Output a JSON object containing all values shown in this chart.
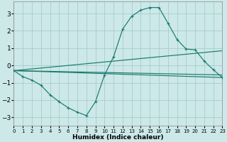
{
  "xlabel": "Humidex (Indice chaleur)",
  "bg_color": "#cce8e8",
  "grid_color": "#aacccc",
  "line_color": "#1a7a6e",
  "xlim": [
    0,
    23
  ],
  "ylim": [
    -3.5,
    3.7
  ],
  "yticks": [
    -3,
    -2,
    -1,
    0,
    1,
    2,
    3
  ],
  "xticks": [
    0,
    1,
    2,
    3,
    4,
    5,
    6,
    7,
    8,
    9,
    10,
    11,
    12,
    13,
    14,
    15,
    16,
    17,
    18,
    19,
    20,
    21,
    22,
    23
  ],
  "main_x": [
    0,
    1,
    2,
    3,
    4,
    5,
    6,
    7,
    8,
    9,
    10,
    11,
    12,
    13,
    14,
    15,
    16,
    17,
    18,
    19,
    20,
    21,
    22,
    23
  ],
  "main_y": [
    -0.3,
    -0.65,
    -0.85,
    -1.15,
    -1.7,
    -2.1,
    -2.45,
    -2.7,
    -2.9,
    -2.1,
    -0.55,
    0.5,
    2.1,
    2.85,
    3.2,
    3.35,
    3.35,
    2.45,
    1.5,
    0.95,
    0.9,
    0.25,
    -0.25,
    -0.7
  ],
  "trend1_x": [
    0,
    23
  ],
  "trend1_y": [
    -0.3,
    -0.7
  ],
  "trend2_x": [
    0,
    23
  ],
  "trend2_y": [
    -0.3,
    -0.55
  ],
  "trend3_x": [
    0,
    23
  ],
  "trend3_y": [
    -0.3,
    0.85
  ]
}
